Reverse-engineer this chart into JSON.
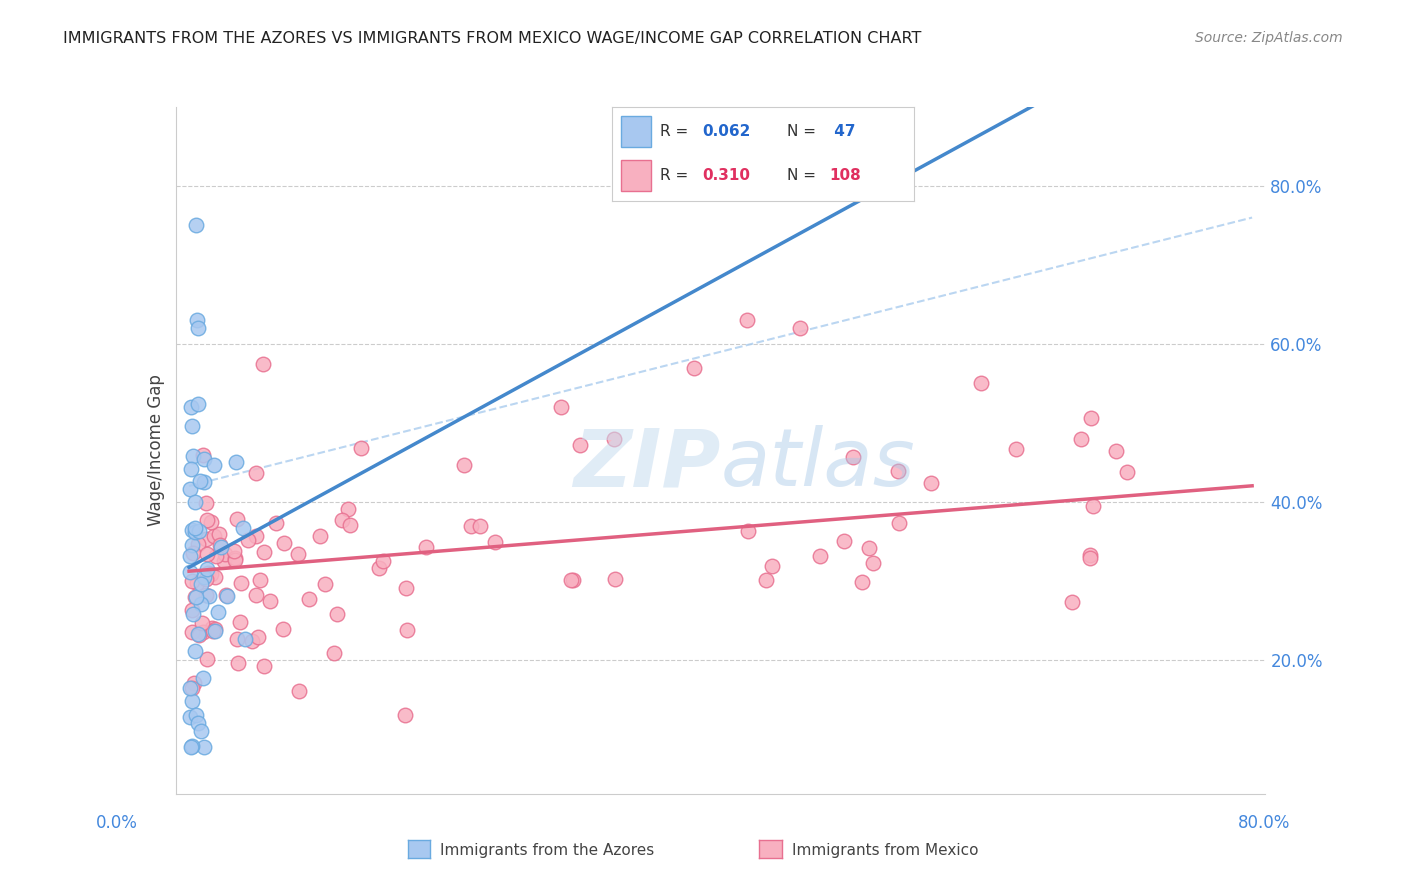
{
  "title": "IMMIGRANTS FROM THE AZORES VS IMMIGRANTS FROM MEXICO WAGE/INCOME GAP CORRELATION CHART",
  "source": "Source: ZipAtlas.com",
  "ylabel": "Wage/Income Gap",
  "right_ytick_vals": [
    0.2,
    0.4,
    0.6,
    0.8
  ],
  "azores_color": "#a8c8f0",
  "azores_edge": "#6aaae0",
  "mexico_color": "#f8b0c0",
  "mexico_edge": "#e87090",
  "trendline_azores_color": "#4488cc",
  "trendline_mexico_color": "#e06080",
  "dashed_line_color": "#aaccee",
  "watermark_zip_color": "#c8ddf0",
  "watermark_atlas_color": "#a8c8e8",
  "grid_color": "#cccccc",
  "legend_r1_val": "0.062",
  "legend_n1_val": "47",
  "legend_r2_val": "0.310",
  "legend_n2_val": "108",
  "legend_color1": "#2266cc",
  "legend_color2": "#e03060",
  "title_color": "#222222",
  "source_color": "#888888",
  "ylabel_color": "#444444",
  "tick_label_color": "#4488dd",
  "bottom_legend_color": "#444444"
}
